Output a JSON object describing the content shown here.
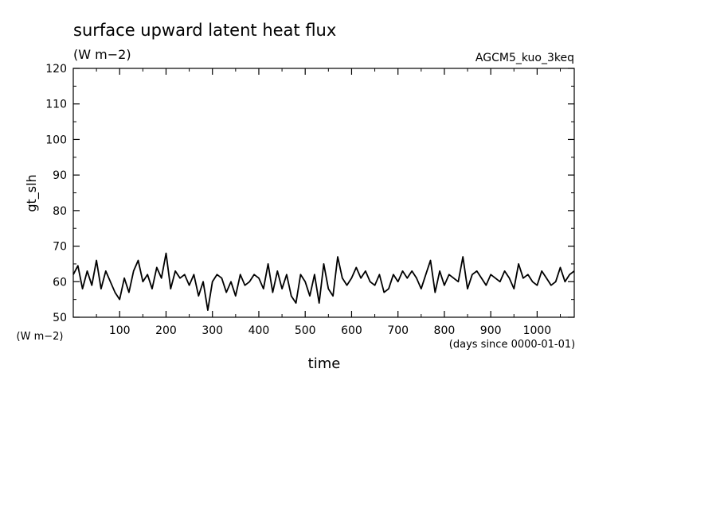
{
  "chart_data": {
    "type": "line",
    "title": "surface upward latent heat flux",
    "subtitle": "(W m−2)",
    "run_label": "AGCM5_kuo_3keq",
    "xlabel": "time",
    "x_units": "(days since 0000-01-01)",
    "ylabel": "gt_slh",
    "y_units": "(W m−2)",
    "xlim": [
      0,
      1080
    ],
    "ylim": [
      50,
      120
    ],
    "x_ticks": [
      100,
      200,
      300,
      400,
      500,
      600,
      700,
      800,
      900,
      1000
    ],
    "y_ticks": [
      50,
      60,
      70,
      80,
      90,
      100,
      110,
      120
    ],
    "grid": false,
    "line_color": "#000000",
    "series": [
      {
        "x": [
          0,
          10,
          20,
          30,
          40,
          50,
          60,
          70,
          80,
          90,
          100,
          110,
          120,
          130,
          140,
          150,
          160,
          170,
          180,
          190,
          200,
          210,
          220,
          230,
          240,
          250,
          260,
          270,
          280,
          290,
          300,
          310,
          320,
          330,
          340,
          350,
          360,
          370,
          380,
          390,
          400,
          410,
          420,
          430,
          440,
          450,
          460,
          470,
          480,
          490,
          500,
          510,
          520,
          530,
          540,
          550,
          560,
          570,
          580,
          590,
          600,
          610,
          620,
          630,
          640,
          650,
          660,
          670,
          680,
          690,
          700,
          710,
          720,
          730,
          740,
          750,
          760,
          770,
          780,
          790,
          800,
          810,
          820,
          830,
          840,
          850,
          860,
          870,
          880,
          890,
          900,
          910,
          920,
          930,
          940,
          950,
          960,
          970,
          980,
          990,
          1000,
          1010,
          1020,
          1030,
          1040,
          1050,
          1060,
          1070,
          1080
        ],
        "values": [
          62,
          64.5,
          58,
          63,
          59,
          66,
          58,
          63,
          60,
          57,
          55,
          61,
          57,
          63,
          66,
          60,
          62,
          58,
          64,
          61,
          68,
          58,
          63,
          61,
          62,
          59,
          62,
          56,
          60,
          52,
          60,
          62,
          61,
          57,
          60,
          56,
          62,
          59,
          60,
          62,
          61,
          58,
          65,
          57,
          63,
          58,
          62,
          56,
          54,
          62,
          60,
          56,
          62,
          54,
          65,
          58,
          56,
          67,
          61,
          59,
          61,
          64,
          61,
          63,
          60,
          59,
          62,
          57,
          58,
          62,
          60,
          63,
          61,
          63,
          61,
          58,
          62,
          66,
          57,
          63,
          59,
          62,
          61,
          60,
          67,
          58,
          62,
          63,
          61,
          59,
          62,
          61,
          60,
          63,
          61,
          58,
          65,
          61,
          62,
          60,
          59,
          63,
          61,
          59,
          60,
          64,
          60,
          62,
          63
        ]
      }
    ]
  }
}
